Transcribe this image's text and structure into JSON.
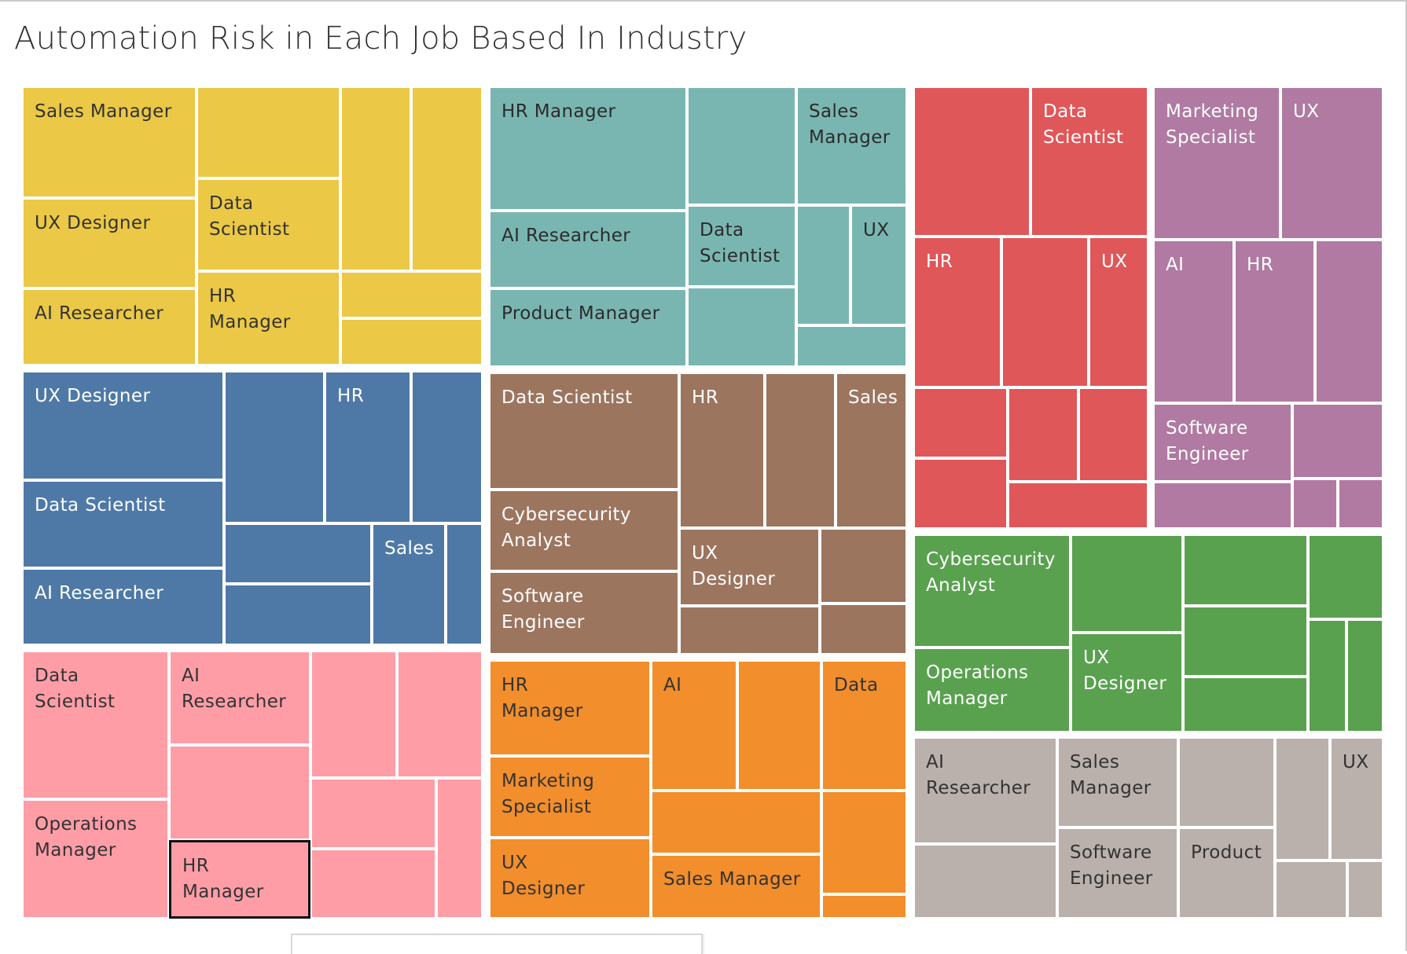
{
  "title": "Automation Risk in Each Job Based In Industry",
  "chart_data": {
    "type": "treemap",
    "title": "Automation Risk in Each Job Based In Industry",
    "groups": [
      {
        "color": "#EBC845",
        "text_color": "#333333",
        "cells": [
          {
            "label": "Sales Manager"
          },
          {
            "label": ""
          },
          {
            "label": "UX Designer"
          },
          {
            "label": "Data Scientist"
          },
          {
            "label": "AI Researcher"
          },
          {
            "label": "HR Manager"
          },
          {
            "label": ""
          },
          {
            "label": ""
          },
          {
            "label": ""
          },
          {
            "label": ""
          }
        ]
      },
      {
        "color": "#7AB6B1",
        "text_color": "#2b2b2b",
        "cells": [
          {
            "label": "HR Manager"
          },
          {
            "label": ""
          },
          {
            "label": "Sales Manager"
          },
          {
            "label": "AI Researcher"
          },
          {
            "label": "Data Scientist"
          },
          {
            "label": ""
          },
          {
            "label": "UX"
          },
          {
            "label": "Product Manager"
          },
          {
            "label": ""
          },
          {
            "label": ""
          }
        ]
      },
      {
        "color": "#E05759",
        "text_color": "#ffffff",
        "cells": [
          {
            "label": ""
          },
          {
            "label": "Data Scientist"
          },
          {
            "label": "HR"
          },
          {
            "label": ""
          },
          {
            "label": "UX"
          },
          {
            "label": ""
          },
          {
            "label": ""
          },
          {
            "label": ""
          },
          {
            "label": ""
          },
          {
            "label": ""
          }
        ]
      },
      {
        "color": "#B07AA2",
        "text_color": "#ffffff",
        "cells": [
          {
            "label": "Marketing Specialist"
          },
          {
            "label": "UX"
          },
          {
            "label": "AI"
          },
          {
            "label": "HR"
          },
          {
            "label": ""
          },
          {
            "label": "Software Engineer"
          },
          {
            "label": ""
          },
          {
            "label": ""
          },
          {
            "label": ""
          },
          {
            "label": ""
          }
        ]
      },
      {
        "color": "#4E79A7",
        "text_color": "#ffffff",
        "cells": [
          {
            "label": "UX Designer"
          },
          {
            "label": ""
          },
          {
            "label": "HR"
          },
          {
            "label": ""
          },
          {
            "label": "Data Scientist"
          },
          {
            "label": ""
          },
          {
            "label": "Sales"
          },
          {
            "label": ""
          },
          {
            "label": "AI Researcher"
          },
          {
            "label": ""
          }
        ]
      },
      {
        "color": "#9C755F",
        "text_color": "#ffffff",
        "cells": [
          {
            "label": "Data Scientist"
          },
          {
            "label": "HR"
          },
          {
            "label": ""
          },
          {
            "label": "Sales"
          },
          {
            "label": "Cybersecurity Analyst"
          },
          {
            "label": "UX Designer"
          },
          {
            "label": ""
          },
          {
            "label": "Software Engineer"
          },
          {
            "label": ""
          },
          {
            "label": ""
          }
        ]
      },
      {
        "color": "#59A14F",
        "text_color": "#ffffff",
        "cells": [
          {
            "label": "Cybersecurity Analyst"
          },
          {
            "label": ""
          },
          {
            "label": ""
          },
          {
            "label": ""
          },
          {
            "label": ""
          },
          {
            "label": "UX Designer"
          },
          {
            "label": "Operations Manager"
          },
          {
            "label": ""
          },
          {
            "label": ""
          },
          {
            "label": ""
          }
        ]
      },
      {
        "color": "#FF9DA7",
        "text_color": "#333333",
        "cells": [
          {
            "label": "Data Scientist"
          },
          {
            "label": "AI Researcher"
          },
          {
            "label": ""
          },
          {
            "label": ""
          },
          {
            "label": ""
          },
          {
            "label": ""
          },
          {
            "label": "Operations Manager"
          },
          {
            "label": "HR Manager"
          },
          {
            "label": ""
          },
          {
            "label": ""
          }
        ]
      },
      {
        "color": "#F28E2B",
        "text_color": "#333333",
        "cells": [
          {
            "label": "HR Manager"
          },
          {
            "label": "AI"
          },
          {
            "label": ""
          },
          {
            "label": "Data"
          },
          {
            "label": "Marketing Specialist"
          },
          {
            "label": ""
          },
          {
            "label": ""
          },
          {
            "label": "UX Designer"
          },
          {
            "label": "Sales Manager"
          },
          {
            "label": ""
          }
        ]
      },
      {
        "color": "#BAB0AC",
        "text_color": "#333333",
        "cells": [
          {
            "label": "AI Researcher"
          },
          {
            "label": "Sales Manager"
          },
          {
            "label": ""
          },
          {
            "label": ""
          },
          {
            "label": "UX"
          },
          {
            "label": "Software Engineer"
          },
          {
            "label": "Product"
          },
          {
            "label": ""
          },
          {
            "label": ""
          },
          {
            "label": ""
          }
        ]
      }
    ],
    "selected": "HR Manager"
  }
}
